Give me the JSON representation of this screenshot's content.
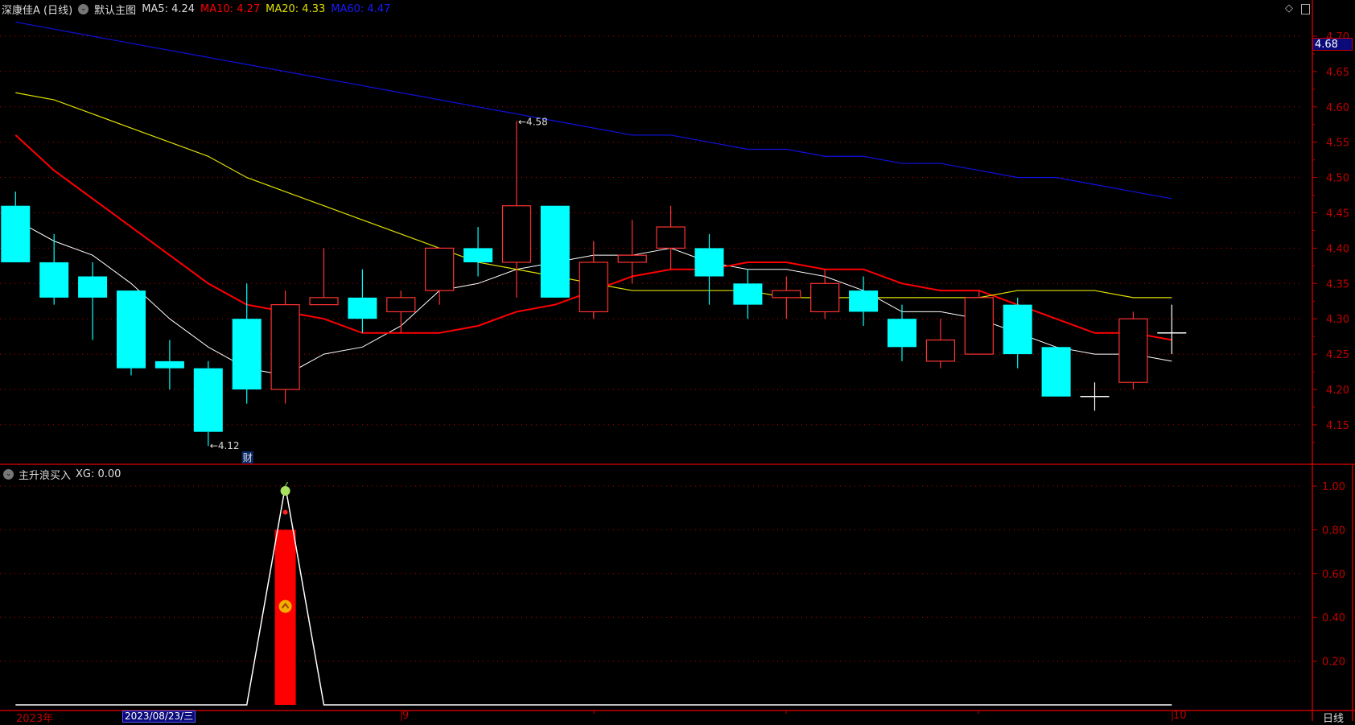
{
  "header": {
    "title": "深康佳A (日线)",
    "template": "默认主图",
    "ma5": "MA5: 4.24",
    "ma10": "MA10: 4.27",
    "ma20": "MA20: 4.33",
    "ma60": "MA60: 4.47"
  },
  "colors": {
    "up": "#ff3232",
    "down": "#00ffff",
    "ma5": "#ffffff",
    "ma10": "#ff0000",
    "ma20": "#e0e000",
    "ma60": "#1010e0",
    "axis": "#c00000",
    "bg": "#000000"
  },
  "price_axis": {
    "ticks": [
      "4.70",
      "4.65",
      "4.60",
      "4.55",
      "4.50",
      "4.45",
      "4.40",
      "4.35",
      "4.30",
      "4.25",
      "4.20",
      "4.15"
    ],
    "current_price": "4.68"
  },
  "indicator_axis": {
    "ticks": [
      "1.00",
      "0.80",
      "0.60",
      "0.40",
      "0.20"
    ]
  },
  "indicator": {
    "title": "主升浪买入",
    "value": "XG: 0.00"
  },
  "time_axis": {
    "year": "2023年",
    "selected_date": "2023/08/23/三",
    "month_9": "9",
    "month_10": "10",
    "period": "日线"
  },
  "annotations": {
    "high": "4.58",
    "low": "4.12",
    "finance_marker": "财"
  },
  "chart_data": {
    "type": "candlestick",
    "ylim": [
      4.12,
      4.72
    ],
    "candles": [
      {
        "o": 4.46,
        "h": 4.48,
        "l": 4.38,
        "c": 4.38
      },
      {
        "o": 4.38,
        "h": 4.42,
        "l": 4.32,
        "c": 4.33
      },
      {
        "o": 4.36,
        "h": 4.38,
        "l": 4.27,
        "c": 4.33
      },
      {
        "o": 4.34,
        "h": 4.34,
        "l": 4.22,
        "c": 4.23
      },
      {
        "o": 4.24,
        "h": 4.27,
        "l": 4.2,
        "c": 4.23
      },
      {
        "o": 4.23,
        "h": 4.24,
        "l": 4.12,
        "c": 4.14
      },
      {
        "o": 4.3,
        "h": 4.35,
        "l": 4.18,
        "c": 4.2
      },
      {
        "o": 4.2,
        "h": 4.34,
        "l": 4.18,
        "c": 4.32
      },
      {
        "o": 4.32,
        "h": 4.4,
        "l": 4.32,
        "c": 4.33
      },
      {
        "o": 4.33,
        "h": 4.37,
        "l": 4.28,
        "c": 4.3
      },
      {
        "o": 4.31,
        "h": 4.34,
        "l": 4.28,
        "c": 4.33
      },
      {
        "o": 4.34,
        "h": 4.4,
        "l": 4.32,
        "c": 4.4
      },
      {
        "o": 4.4,
        "h": 4.43,
        "l": 4.36,
        "c": 4.38
      },
      {
        "o": 4.38,
        "h": 4.58,
        "l": 4.33,
        "c": 4.46
      },
      {
        "o": 4.46,
        "h": 4.46,
        "l": 4.33,
        "c": 4.33
      },
      {
        "o": 4.31,
        "h": 4.41,
        "l": 4.3,
        "c": 4.38
      },
      {
        "o": 4.38,
        "h": 4.44,
        "l": 4.35,
        "c": 4.39
      },
      {
        "o": 4.4,
        "h": 4.46,
        "l": 4.37,
        "c": 4.43
      },
      {
        "o": 4.4,
        "h": 4.42,
        "l": 4.32,
        "c": 4.36
      },
      {
        "o": 4.35,
        "h": 4.37,
        "l": 4.3,
        "c": 4.32
      },
      {
        "o": 4.33,
        "h": 4.36,
        "l": 4.3,
        "c": 4.34
      },
      {
        "o": 4.31,
        "h": 4.37,
        "l": 4.3,
        "c": 4.35
      },
      {
        "o": 4.34,
        "h": 4.36,
        "l": 4.29,
        "c": 4.31
      },
      {
        "o": 4.3,
        "h": 4.32,
        "l": 4.24,
        "c": 4.26
      },
      {
        "o": 4.24,
        "h": 4.3,
        "l": 4.23,
        "c": 4.27
      },
      {
        "o": 4.25,
        "h": 4.34,
        "l": 4.25,
        "c": 4.33
      },
      {
        "o": 4.32,
        "h": 4.33,
        "l": 4.23,
        "c": 4.25
      },
      {
        "o": 4.26,
        "h": 4.26,
        "l": 4.19,
        "c": 4.19
      },
      {
        "o": 4.19,
        "h": 4.21,
        "l": 4.17,
        "c": 4.19
      },
      {
        "o": 4.21,
        "h": 4.31,
        "l": 4.2,
        "c": 4.3
      },
      {
        "o": 4.28,
        "h": 4.32,
        "l": 4.25,
        "c": 4.28
      }
    ],
    "series": [
      {
        "name": "MA5",
        "values": [
          4.44,
          4.41,
          4.39,
          4.35,
          4.3,
          4.26,
          4.23,
          4.22,
          4.25,
          4.26,
          4.29,
          4.34,
          4.35,
          4.37,
          4.38,
          4.39,
          4.39,
          4.4,
          4.38,
          4.37,
          4.37,
          4.36,
          4.34,
          4.31,
          4.31,
          4.3,
          4.28,
          4.26,
          4.25,
          4.25,
          4.24
        ]
      },
      {
        "name": "MA10",
        "values": [
          4.56,
          4.51,
          4.47,
          4.43,
          4.39,
          4.35,
          4.32,
          4.31,
          4.3,
          4.28,
          4.28,
          4.28,
          4.29,
          4.31,
          4.32,
          4.34,
          4.36,
          4.37,
          4.37,
          4.38,
          4.38,
          4.37,
          4.37,
          4.35,
          4.34,
          4.34,
          4.32,
          4.3,
          4.28,
          4.28,
          4.27
        ]
      },
      {
        "name": "MA20",
        "values": [
          4.62,
          4.61,
          4.59,
          4.57,
          4.55,
          4.53,
          4.5,
          4.48,
          4.46,
          4.44,
          4.42,
          4.4,
          4.38,
          4.37,
          4.36,
          4.35,
          4.34,
          4.34,
          4.34,
          4.34,
          4.33,
          4.33,
          4.33,
          4.33,
          4.33,
          4.33,
          4.34,
          4.34,
          4.34,
          4.33,
          4.33
        ]
      },
      {
        "name": "MA60",
        "values": [
          4.72,
          4.71,
          4.7,
          4.69,
          4.68,
          4.67,
          4.66,
          4.65,
          4.64,
          4.63,
          4.62,
          4.61,
          4.6,
          4.59,
          4.58,
          4.57,
          4.56,
          4.56,
          4.55,
          4.54,
          4.54,
          4.53,
          4.53,
          4.52,
          4.52,
          4.51,
          4.5,
          4.5,
          4.49,
          4.48,
          4.47
        ]
      }
    ],
    "indicator_xg": [
      0,
      0,
      0,
      0,
      0,
      0,
      0,
      1,
      0,
      0,
      0,
      0,
      0,
      0,
      0,
      0,
      0,
      0,
      0,
      0,
      0,
      0,
      0,
      0,
      0,
      0,
      0,
      0,
      0,
      0,
      0
    ],
    "indicator_bar": {
      "index": 7,
      "value": 0.8
    }
  }
}
